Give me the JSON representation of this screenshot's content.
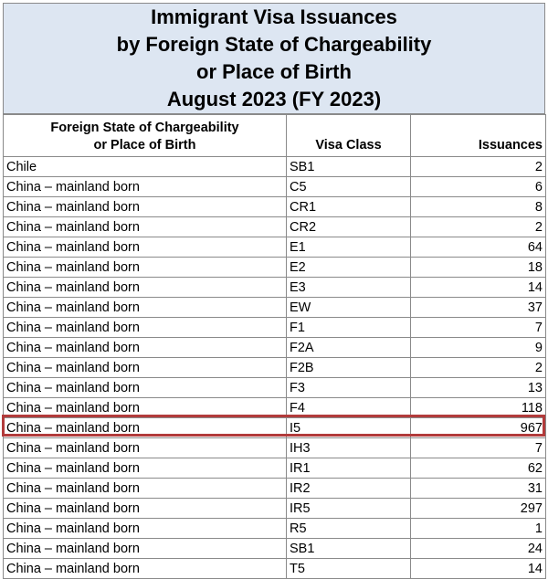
{
  "title_lines": [
    "Immigrant Visa Issuances",
    "by Foreign State of Chargeability",
    "or Place of Birth",
    "August 2023 (FY 2023)"
  ],
  "columns": {
    "state_line1": "Foreign State of Chargeability",
    "state_line2": "or Place of Birth",
    "visa_class": "Visa Class",
    "issuances": "Issuances"
  },
  "rows": [
    {
      "state": "Chile",
      "visa_class": "SB1",
      "issuances": "2"
    },
    {
      "state": "China – mainland born",
      "visa_class": "C5",
      "issuances": "6"
    },
    {
      "state": "China – mainland born",
      "visa_class": "CR1",
      "issuances": "8"
    },
    {
      "state": "China – mainland born",
      "visa_class": "CR2",
      "issuances": "2"
    },
    {
      "state": "China – mainland born",
      "visa_class": "E1",
      "issuances": "64"
    },
    {
      "state": "China – mainland born",
      "visa_class": "E2",
      "issuances": "18"
    },
    {
      "state": "China – mainland born",
      "visa_class": "E3",
      "issuances": "14"
    },
    {
      "state": "China – mainland born",
      "visa_class": "EW",
      "issuances": "37"
    },
    {
      "state": "China – mainland born",
      "visa_class": "F1",
      "issuances": "7"
    },
    {
      "state": "China – mainland born",
      "visa_class": "F2A",
      "issuances": "9"
    },
    {
      "state": "China – mainland born",
      "visa_class": "F2B",
      "issuances": "2"
    },
    {
      "state": "China – mainland born",
      "visa_class": "F3",
      "issuances": "13"
    },
    {
      "state": "China – mainland born",
      "visa_class": "F4",
      "issuances": "118"
    },
    {
      "state": "China – mainland born",
      "visa_class": "I5",
      "issuances": "967"
    },
    {
      "state": "China – mainland born",
      "visa_class": "IH3",
      "issuances": "7"
    },
    {
      "state": "China – mainland born",
      "visa_class": "IR1",
      "issuances": "62"
    },
    {
      "state": "China – mainland born",
      "visa_class": "IR2",
      "issuances": "31"
    },
    {
      "state": "China – mainland born",
      "visa_class": "IR5",
      "issuances": "297"
    },
    {
      "state": "China – mainland born",
      "visa_class": "R5",
      "issuances": "1"
    },
    {
      "state": "China – mainland born",
      "visa_class": "SB1",
      "issuances": "24"
    },
    {
      "state": "China – mainland born",
      "visa_class": "T5",
      "issuances": "14"
    }
  ],
  "colors": {
    "title_background": "#dde6f2",
    "highlight_border": "#b23b3b",
    "grid_lines": "#8a8a8a"
  }
}
